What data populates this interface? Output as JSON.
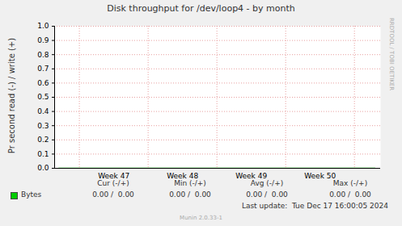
{
  "chart_data": {
    "type": "line",
    "title": "Disk throughput for /dev/loop4 - by month",
    "y_label": "Pr second read (-) / write (+)",
    "xlim": [
      46.64,
      51.38
    ],
    "xticks": [
      {
        "value": 47.5,
        "label": "Week 47"
      },
      {
        "value": 48.5,
        "label": "Week 48"
      },
      {
        "value": 49.5,
        "label": "Week 49"
      },
      {
        "value": 50.5,
        "label": "Week 50"
      }
    ],
    "ylim": [
      0,
      1
    ],
    "yticks": [
      {
        "value": 0,
        "label": "0.0"
      },
      0.1,
      0.2,
      0.3,
      0.4,
      0.5,
      0.6,
      0.7,
      0.8,
      0.9,
      {
        "value": 1,
        "label": "1.0"
      }
    ],
    "grid": true,
    "x": [
      46.7,
      47.5,
      48.5,
      49.5,
      50.5,
      51.3
    ],
    "series": [
      {
        "name": "Bytes",
        "color": "#00cc00",
        "values": [
          0,
          0,
          0,
          0,
          0,
          0
        ],
        "stats": [
          "0.00 /  0.00",
          "0.00 /  0.00",
          "0.00 /  0.00",
          "0.00 /  0.00"
        ]
      }
    ],
    "legend_columns": [
      "Cur (-/+)",
      "Min (-/+)",
      "Avg (-/+)",
      "Max (-/+)"
    ],
    "last_update": "Last update:  Tue Dec 17 16:00:05 2024",
    "credit": "Munin 2.0.33-1",
    "watermark": "RRDTOOL / TOBI OETIKER"
  }
}
